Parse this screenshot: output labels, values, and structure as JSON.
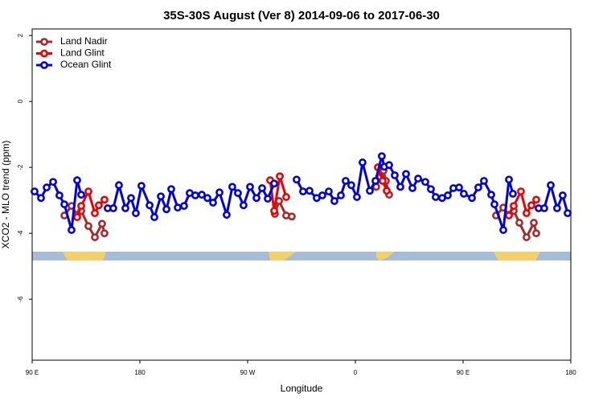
{
  "chart_data": {
    "type": "line",
    "title": "35S-30S August (Ver 8)   2014-09-06 to 2017-06-30",
    "x_label": "Longitude",
    "y_label": "XCO2 - MLO trend (ppm)",
    "xlim": [
      90,
      540
    ],
    "ylim": [
      -7.85,
      2.2
    ],
    "xticks": [
      {
        "value": 90,
        "label": "90 E"
      },
      180,
      {
        "value": 270,
        "label": "90 W"
      },
      {
        "value": 360,
        "label": "0"
      },
      {
        "value": 450,
        "label": "90 E"
      },
      {
        "value": 540,
        "label": "180"
      }
    ],
    "yticks": [
      2,
      0,
      -2,
      -4,
      -6
    ],
    "legend": "top-left",
    "series": [
      {
        "name": "Land Nadir",
        "color": "#a52a2a",
        "x": [
          116.9,
          122.9,
          127.6,
          131.0,
          137.0,
          142.4,
          148.4,
          150.4,
          null,
          292.8,
          296.2,
          302.2,
          306.9,
          null,
          377.4,
          380.8,
          383.5,
          385.5,
          388.2,
          null,
          477.5,
          483.6,
          488.3,
          492.3,
          497.0,
          503.0,
          509.1,
          511.1
        ],
        "values": [
          -3.46,
          -3.17,
          -3.44,
          -3.32,
          -3.78,
          -4.12,
          -3.71,
          -4.0,
          null,
          -3.41,
          -3.02,
          -3.46,
          -3.49,
          null,
          -2.59,
          -2.29,
          -2.1,
          -2.41,
          -2.83,
          null,
          -3.46,
          -3.22,
          -3.44,
          -3.32,
          -3.68,
          -4.12,
          -3.68,
          -4.0
        ]
      },
      {
        "name": "Land Glint",
        "color": "#ee0000",
        "x": [
          127.6,
          131.0,
          137.0,
          142.4,
          145.7,
          150.4,
          null,
          288.8,
          292.2,
          296.9,
          302.2,
          null,
          378.8,
          382.8,
          386.2,
          null,
          488.3,
          492.3,
          498.3,
          503.0,
          507.1,
          511.1
        ],
        "values": [
          -3.51,
          -3.17,
          -2.73,
          -3.39,
          -3.15,
          -2.98,
          null,
          -2.39,
          -3.32,
          -2.27,
          -2.9,
          null,
          -2.0,
          -2.41,
          -2.71,
          null,
          -3.46,
          -3.17,
          -2.73,
          -3.39,
          -3.15,
          -2.98
        ]
      },
      {
        "name": "Ocean Glint",
        "color": "#0000dd",
        "x": [
          92.0,
          97.4,
          102.1,
          107.5,
          112.8,
          116.9,
          122.9,
          127.6,
          131.0,
          null,
          153.1,
          157.8,
          162.5,
          167.9,
          172.6,
          176.6,
          181.3,
          188.1,
          192.1,
          197.5,
          202.2,
          206.2,
          211.6,
          216.9,
          221.6,
          226.3,
          231.7,
          236.4,
          241.1,
          246.5,
          252.5,
          257.2,
          261.9,
          266.6,
          272.0,
          277.4,
          282.1,
          286.8,
          292.2,
          null,
          310.9,
          316.3,
          321.7,
          327.7,
          332.4,
          337.8,
          342.5,
          347.9,
          351.9,
          356.6,
          361.3,
          366.0,
          372.1,
          376.8,
          382.1,
          384.2,
          388.2,
          392.9,
          397.6,
          402.3,
          407.7,
          412.4,
          418.4,
          423.1,
          427.1,
          432.5,
          437.2,
          441.9,
          446.6,
          450.6,
          457.4,
          462.7,
          467.4,
          473.5,
          476.2,
          483.6,
          488.3,
          491.6,
          null,
          513.1,
          517.8,
          523.2,
          528.5,
          533.2,
          537.3
        ],
        "values": [
          -2.73,
          -2.93,
          -2.61,
          -2.44,
          -2.85,
          -3.12,
          -3.9,
          -2.39,
          -2.83,
          null,
          -3.24,
          -3.24,
          -2.54,
          -3.24,
          -2.93,
          -3.39,
          -2.56,
          -3.15,
          -3.51,
          -2.88,
          -3.27,
          -2.66,
          -3.22,
          -3.17,
          -2.78,
          -2.85,
          -2.83,
          -2.93,
          -3.07,
          -2.76,
          -3.44,
          -2.59,
          -2.78,
          -3.15,
          -2.59,
          -2.93,
          -2.63,
          -2.95,
          -2.49,
          null,
          -2.37,
          -2.73,
          -2.71,
          -2.93,
          -2.85,
          -2.73,
          -3.02,
          -2.85,
          -2.41,
          -2.54,
          -2.9,
          -1.85,
          -2.71,
          -2.41,
          -1.66,
          -1.98,
          -1.93,
          -2.24,
          -2.59,
          -2.2,
          -2.63,
          -2.34,
          -2.44,
          -2.66,
          -2.9,
          -2.93,
          -2.85,
          -2.63,
          -2.61,
          -2.8,
          -2.93,
          -2.61,
          -2.41,
          -2.83,
          -3.12,
          -3.9,
          -2.37,
          -2.8,
          null,
          -3.24,
          -3.24,
          -2.54,
          -3.24,
          -2.85,
          -3.39
        ]
      }
    ]
  }
}
